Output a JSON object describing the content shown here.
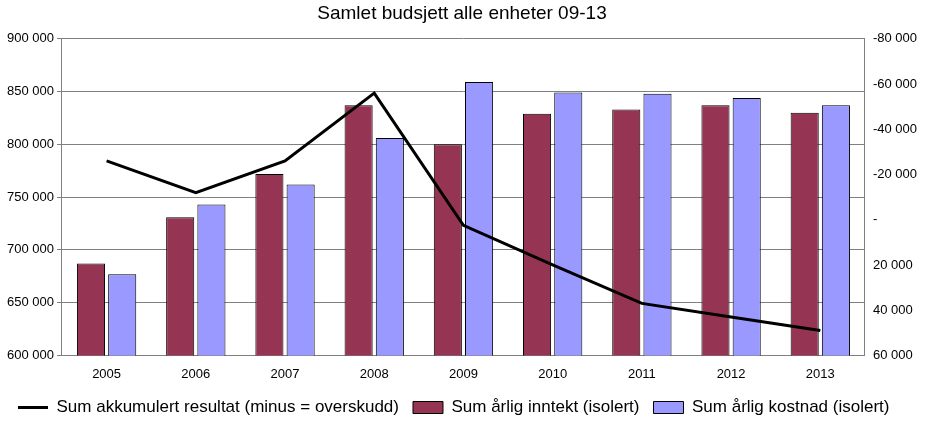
{
  "chart_data": {
    "type": "bar",
    "title": "Samlet budsjett alle enheter 09-13",
    "categories": [
      "2005",
      "2006",
      "2007",
      "2008",
      "2009",
      "2010",
      "2011",
      "2012",
      "2013"
    ],
    "series": [
      {
        "name": "Sum årlig inntekt (isolert)",
        "color": "#953553",
        "values": [
          687000,
          731000,
          772000,
          837000,
          800000,
          829000,
          833000,
          837000,
          830000
        ]
      },
      {
        "name": "Sum årlig kostnad (isolert)",
        "color": "#9999ff",
        "values": [
          677000,
          743000,
          762000,
          806000,
          859000,
          849000,
          848000,
          844000,
          837000
        ]
      },
      {
        "name": "Sum akkumulert resultat (minus = overskudd)",
        "type": "line",
        "color": "#000000",
        "axis": "y2",
        "values": [
          -26000,
          -12000,
          -26000,
          -56000,
          2500,
          20000,
          37000,
          43000,
          49000
        ]
      }
    ],
    "ylim": [
      600000,
      900000
    ],
    "yticks": [
      {
        "value": 600000,
        "label": "600 000"
      },
      {
        "value": 650000,
        "label": "650 000"
      },
      {
        "value": 700000,
        "label": "700 000"
      },
      {
        "value": 750000,
        "label": "750 000"
      },
      {
        "value": 800000,
        "label": "800 000"
      },
      {
        "value": 850000,
        "label": "850 000"
      },
      {
        "value": 900000,
        "label": "900 000"
      }
    ],
    "y2lim": [
      60000,
      -80000
    ],
    "y2ticks": [
      {
        "value": -80000,
        "label": "-80 000"
      },
      {
        "value": -60000,
        "label": "-60 000"
      },
      {
        "value": -40000,
        "label": "-40 000"
      },
      {
        "value": -20000,
        "label": "-20 000"
      },
      {
        "value": 0,
        "label": "-"
      },
      {
        "value": 20000,
        "label": "20 000"
      },
      {
        "value": 40000,
        "label": "40 000"
      },
      {
        "value": 60000,
        "label": "60 000"
      }
    ],
    "grid": true,
    "legend": "bottom"
  }
}
